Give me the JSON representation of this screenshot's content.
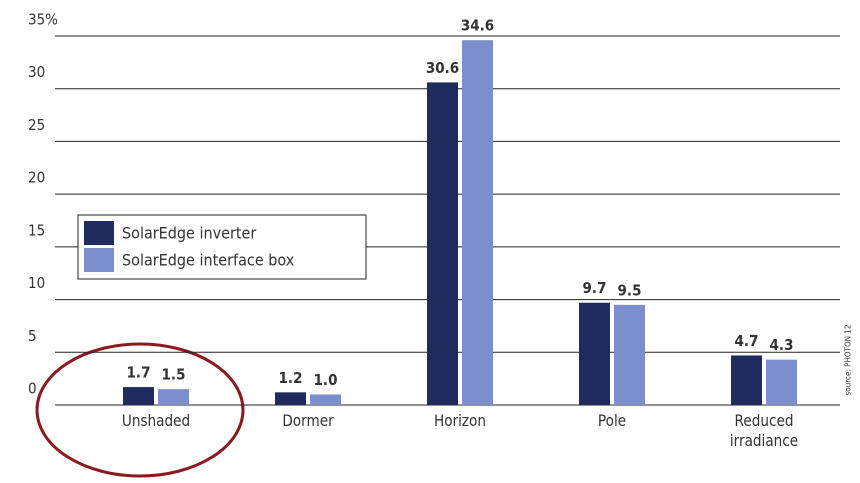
{
  "chart_data": {
    "type": "bar",
    "categories": [
      "Unshaded",
      "Dormer",
      "Horizon",
      "Pole",
      "Reduced irradiance"
    ],
    "series": [
      {
        "name": "SolarEdge inverter",
        "color": "#1f2b5c",
        "values": [
          1.7,
          1.2,
          30.6,
          9.7,
          4.7
        ],
        "value_labels": [
          "1.7",
          "1.2",
          "30.6",
          "9.7",
          "4.7"
        ]
      },
      {
        "name": "SolarEdge interface box",
        "color": "#7a8fcb",
        "values": [
          1.5,
          1.0,
          34.6,
          9.5,
          4.3
        ],
        "value_labels": [
          "1.5",
          "1.0",
          "34.6",
          "9.5",
          "4.3"
        ]
      }
    ],
    "ylim": [
      0,
      35
    ],
    "yticks": [
      0,
      5,
      10,
      15,
      20,
      25,
      30,
      {
        "value": 35,
        "label": "35%"
      }
    ],
    "grid": true,
    "legend": "left",
    "source": "source: PHOTON 12"
  }
}
